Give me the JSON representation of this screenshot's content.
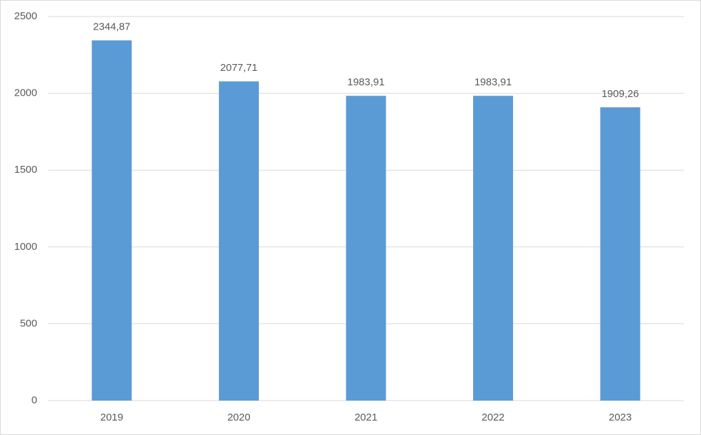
{
  "chart_data": {
    "type": "bar",
    "categories": [
      "2019",
      "2020",
      "2021",
      "2022",
      "2023"
    ],
    "values": [
      2344.87,
      2077.71,
      1983.91,
      1983.91,
      1909.26
    ],
    "value_labels": [
      "2344,87",
      "2077,71",
      "1983,91",
      "1983,91",
      "1909,26"
    ],
    "color": "#5b9bd5",
    "ylim": [
      0,
      2500
    ],
    "yticks": [
      0,
      500,
      1000,
      1500,
      2000,
      2500
    ],
    "grid": true
  }
}
